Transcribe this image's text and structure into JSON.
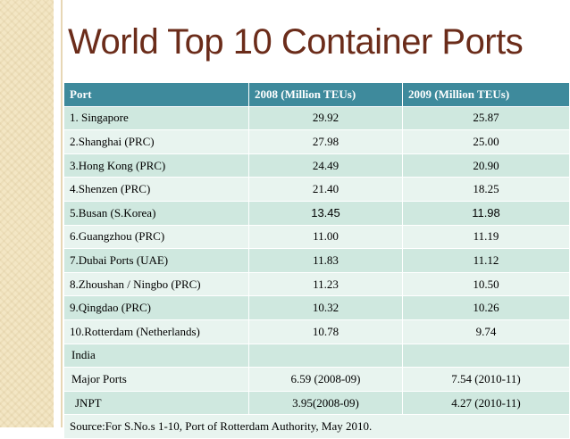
{
  "slide": {
    "title": "World Top 10 Container Ports"
  },
  "table": {
    "headers": [
      "Port",
      "2008 (Million TEUs)",
      "2009 (Million TEUs)"
    ],
    "rows": [
      {
        "port": "1. Singapore",
        "y2008": "29.92",
        "y2009": "25.87"
      },
      {
        "port": "2.Shanghai (PRC)",
        "y2008": "27.98",
        "y2009": "25.00"
      },
      {
        "port": "3.Hong Kong (PRC)",
        "y2008": "24.49",
        "y2009": "20.90"
      },
      {
        "port": "4.Shenzen (PRC)",
        "y2008": "21.40",
        "y2009": "18.25"
      },
      {
        "port": "5.Busan (S.Korea)",
        "y2008": "13.45",
        "y2009": "11.98"
      },
      {
        "port": "6.Guangzhou (PRC)",
        "y2008": "11.00",
        "y2009": "11.19"
      },
      {
        "port": "7.Dubai Ports (UAE)",
        "y2008": "11.83",
        "y2009": "11.12"
      },
      {
        "port": "8.Zhoushan / Ningbo (PRC)",
        "y2008": "11.23",
        "y2009": "10.50"
      },
      {
        "port": "9.Qingdao (PRC)",
        "y2008": "10.32",
        "y2009": "10.26"
      },
      {
        "port": "10.Rotterdam (Netherlands)",
        "y2008": "10.78",
        "y2009": "9.74"
      },
      {
        "port": "India",
        "y2008": "",
        "y2009": ""
      },
      {
        "port": "Major Ports",
        "y2008": "6.59 (2008-09)",
        "y2009": "7.54 (2010-11)"
      },
      {
        "port": "JNPT",
        "y2008": "3.95(2008-09)",
        "y2009": "4.27 (2010-11)"
      }
    ],
    "source": "Source:For  S.No.s 1-10, Port of Rotterdam Authority, May 2010."
  },
  "colors": {
    "title": "#6b2c1a",
    "header_bg": "#3e8a9c",
    "row_dark": "#cfe8df",
    "row_light": "#e8f4ef"
  }
}
